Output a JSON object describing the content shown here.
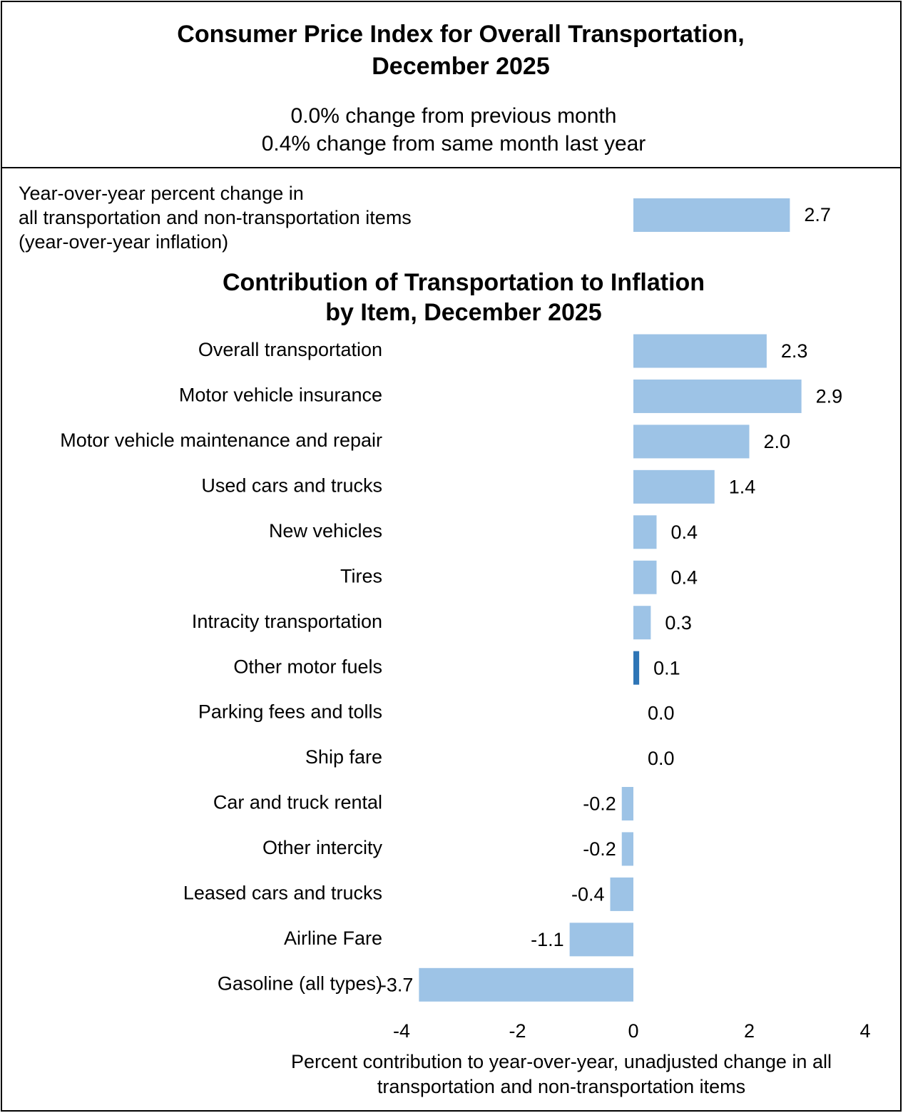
{
  "chart_data": {
    "type": "bar",
    "title": [
      "Consumer Price Index for Overall Transportation,",
      "December 2025"
    ],
    "subtitle": [
      "0.0% change from previous month",
      "0.4% change from same month last year"
    ],
    "summary": {
      "label": [
        "Year-over-year percent change in",
        "all transportation and non-transportation items",
        "(year-over-year inflation)"
      ],
      "value": 2.7,
      "value_label": "2.7",
      "color": "#9dc3e6"
    },
    "chart_title": [
      "Contribution of Transportation to Inflation",
      "by Item, December 2025"
    ],
    "categories": [
      "Overall transportation",
      "Motor vehicle insurance",
      "Motor vehicle maintenance and repair",
      "Used cars and trucks",
      "New vehicles",
      "Tires",
      "Intracity transportation",
      "Other motor fuels",
      "Parking fees and tolls",
      "Ship fare",
      "Car and truck rental",
      "Other intercity",
      "Leased cars and trucks",
      "Airline Fare",
      "Gasoline (all types)"
    ],
    "values": [
      2.3,
      2.9,
      2.0,
      1.4,
      0.4,
      0.4,
      0.3,
      0.1,
      0.0,
      0.0,
      -0.2,
      -0.2,
      -0.4,
      -1.1,
      -3.7
    ],
    "value_labels": [
      "2.3",
      "2.9",
      "2.0",
      "1.4",
      "0.4",
      "0.4",
      "0.3",
      "0.1",
      "0.0",
      "0.0",
      "-0.2",
      "-0.2",
      "-0.4",
      "-1.1",
      "-3.7"
    ],
    "colors": [
      "#9dc3e6",
      "#9dc3e6",
      "#9dc3e6",
      "#9dc3e6",
      "#9dc3e6",
      "#9dc3e6",
      "#9dc3e6",
      "#2e75b6",
      "#9dc3e6",
      "#9dc3e6",
      "#9dc3e6",
      "#9dc3e6",
      "#9dc3e6",
      "#9dc3e6",
      "#9dc3e6"
    ],
    "xlim": [
      -4,
      4
    ],
    "xticks": [
      -4,
      -2,
      0,
      2,
      4
    ],
    "xlabel": [
      "Percent contribution to year-over-year, unadjusted change in all",
      "transportation and non-transportation items"
    ]
  }
}
